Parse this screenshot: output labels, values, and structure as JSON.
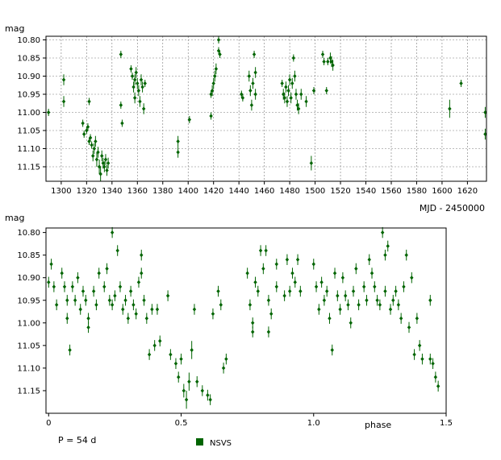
{
  "chart_data": [
    {
      "type": "scatter",
      "name": "time-series",
      "xlabel": "MJD - 2450000",
      "ylabel": "mag",
      "xlim": [
        1288,
        1635
      ],
      "ylim": [
        10.79,
        11.19
      ],
      "y_inverted": true,
      "grid": true,
      "xticks": [
        1300,
        1320,
        1340,
        1360,
        1380,
        1400,
        1420,
        1440,
        1460,
        1480,
        1500,
        1520,
        1540,
        1560,
        1580,
        1600,
        1620
      ],
      "yticks": [
        10.8,
        10.85,
        10.9,
        10.95,
        11.0,
        11.05,
        11.1,
        11.15
      ],
      "color": "#006400",
      "points": [
        [
          1290,
          11.0,
          0.01
        ],
        [
          1302,
          10.91,
          0.015
        ],
        [
          1302,
          10.97,
          0.015
        ],
        [
          1317,
          11.03,
          0.01
        ],
        [
          1318,
          11.06,
          0.01
        ],
        [
          1320,
          11.05,
          0.01
        ],
        [
          1321,
          11.04,
          0.01
        ],
        [
          1322,
          10.97,
          0.01
        ],
        [
          1322,
          11.08,
          0.01
        ],
        [
          1323,
          11.07,
          0.01
        ],
        [
          1324,
          11.09,
          0.01
        ],
        [
          1325,
          11.12,
          0.015
        ],
        [
          1326,
          11.1,
          0.015
        ],
        [
          1327,
          11.08,
          0.015
        ],
        [
          1328,
          11.13,
          0.02
        ],
        [
          1329,
          11.11,
          0.015
        ],
        [
          1330,
          11.15,
          0.02
        ],
        [
          1331,
          11.17,
          0.02
        ],
        [
          1332,
          11.12,
          0.015
        ],
        [
          1333,
          11.14,
          0.015
        ],
        [
          1334,
          11.15,
          0.015
        ],
        [
          1335,
          11.13,
          0.015
        ],
        [
          1336,
          11.16,
          0.015
        ],
        [
          1337,
          11.14,
          0.015
        ],
        [
          1347,
          10.84,
          0.01
        ],
        [
          1347,
          10.98,
          0.01
        ],
        [
          1348,
          11.03,
          0.01
        ],
        [
          1355,
          10.88,
          0.01
        ],
        [
          1356,
          10.9,
          0.01
        ],
        [
          1357,
          10.93,
          0.015
        ],
        [
          1358,
          10.91,
          0.015
        ],
        [
          1358,
          10.96,
          0.015
        ],
        [
          1359,
          10.89,
          0.015
        ],
        [
          1360,
          10.92,
          0.015
        ],
        [
          1361,
          10.94,
          0.015
        ],
        [
          1362,
          10.97,
          0.015
        ],
        [
          1363,
          10.91,
          0.015
        ],
        [
          1364,
          10.93,
          0.015
        ],
        [
          1365,
          10.99,
          0.015
        ],
        [
          1366,
          10.92,
          0.01
        ],
        [
          1392,
          11.11,
          0.015
        ],
        [
          1392,
          11.08,
          0.015
        ],
        [
          1401,
          11.02,
          0.01
        ],
        [
          1418,
          10.95,
          0.01
        ],
        [
          1418,
          11.01,
          0.01
        ],
        [
          1419,
          10.94,
          0.015
        ],
        [
          1420,
          10.92,
          0.015
        ],
        [
          1421,
          10.9,
          0.015
        ],
        [
          1422,
          10.88,
          0.015
        ],
        [
          1424,
          10.8,
          0.01
        ],
        [
          1424,
          10.83,
          0.01
        ],
        [
          1425,
          10.84,
          0.01
        ],
        [
          1442,
          10.95,
          0.01
        ],
        [
          1443,
          10.96,
          0.01
        ],
        [
          1448,
          10.9,
          0.015
        ],
        [
          1449,
          10.94,
          0.015
        ],
        [
          1450,
          10.98,
          0.015
        ],
        [
          1451,
          10.92,
          0.015
        ],
        [
          1452,
          10.84,
          0.01
        ],
        [
          1453,
          10.89,
          0.015
        ],
        [
          1453,
          10.95,
          0.015
        ],
        [
          1474,
          10.92,
          0.01
        ],
        [
          1475,
          10.95,
          0.015
        ],
        [
          1476,
          10.96,
          0.015
        ],
        [
          1477,
          10.93,
          0.015
        ],
        [
          1478,
          10.97,
          0.015
        ],
        [
          1479,
          10.94,
          0.015
        ],
        [
          1480,
          10.91,
          0.015
        ],
        [
          1481,
          10.96,
          0.015
        ],
        [
          1482,
          10.92,
          0.015
        ],
        [
          1483,
          10.85,
          0.01
        ],
        [
          1484,
          10.9,
          0.015
        ],
        [
          1485,
          10.95,
          0.015
        ],
        [
          1486,
          10.98,
          0.015
        ],
        [
          1487,
          10.99,
          0.015
        ],
        [
          1489,
          10.95,
          0.015
        ],
        [
          1493,
          10.97,
          0.015
        ],
        [
          1497,
          11.14,
          0.02
        ],
        [
          1499,
          10.94,
          0.01
        ],
        [
          1506,
          10.84,
          0.01
        ],
        [
          1507,
          10.86,
          0.01
        ],
        [
          1509,
          10.94,
          0.01
        ],
        [
          1510,
          10.86,
          0.01
        ],
        [
          1512,
          10.85,
          0.015
        ],
        [
          1513,
          10.86,
          0.015
        ],
        [
          1514,
          10.87,
          0.015
        ],
        [
          1606,
          10.99,
          0.025
        ],
        [
          1615,
          10.92,
          0.01
        ],
        [
          1634,
          11.0,
          0.015
        ],
        [
          1634,
          11.06,
          0.015
        ]
      ]
    },
    {
      "type": "scatter",
      "name": "phase",
      "xlabel": "phase",
      "ylabel": "mag",
      "xlim": [
        -0.01,
        1.5
      ],
      "ylim": [
        10.79,
        11.2
      ],
      "y_inverted": true,
      "grid": false,
      "xticks": [
        0,
        0.5,
        1.0,
        1.5
      ],
      "xtick_labels": [
        "0",
        "0.5",
        "1.0",
        "1.5"
      ],
      "yticks": [
        10.8,
        10.85,
        10.9,
        10.95,
        11.0,
        11.05,
        11.1,
        11.15
      ],
      "annotation": "P = 54 d",
      "legend": [
        {
          "label": "NSVS",
          "color": "#006400"
        }
      ],
      "color": "#006400",
      "points": [
        [
          0.0,
          10.91,
          0.012
        ],
        [
          0.01,
          10.87,
          0.012
        ],
        [
          0.02,
          10.92,
          0.012
        ],
        [
          0.03,
          10.96,
          0.012
        ],
        [
          0.05,
          10.89,
          0.012
        ],
        [
          0.06,
          10.92,
          0.012
        ],
        [
          0.07,
          10.95,
          0.012
        ],
        [
          0.07,
          10.99,
          0.012
        ],
        [
          0.08,
          11.06,
          0.012
        ],
        [
          0.09,
          10.92,
          0.012
        ],
        [
          0.1,
          10.95,
          0.012
        ],
        [
          0.11,
          10.9,
          0.012
        ],
        [
          0.12,
          10.97,
          0.012
        ],
        [
          0.13,
          10.93,
          0.012
        ],
        [
          0.14,
          10.95,
          0.012
        ],
        [
          0.15,
          10.99,
          0.012
        ],
        [
          0.15,
          11.01,
          0.012
        ],
        [
          0.17,
          10.93,
          0.012
        ],
        [
          0.18,
          10.96,
          0.012
        ],
        [
          0.19,
          10.89,
          0.012
        ],
        [
          0.21,
          10.92,
          0.012
        ],
        [
          0.22,
          10.88,
          0.012
        ],
        [
          0.23,
          10.95,
          0.012
        ],
        [
          0.24,
          10.96,
          0.012
        ],
        [
          0.24,
          10.8,
          0.012
        ],
        [
          0.25,
          10.94,
          0.012
        ],
        [
          0.26,
          10.84,
          0.012
        ],
        [
          0.27,
          10.92,
          0.012
        ],
        [
          0.28,
          10.97,
          0.012
        ],
        [
          0.29,
          10.95,
          0.012
        ],
        [
          0.3,
          10.99,
          0.012
        ],
        [
          0.31,
          10.93,
          0.012
        ],
        [
          0.32,
          10.96,
          0.012
        ],
        [
          0.33,
          10.98,
          0.012
        ],
        [
          0.34,
          10.91,
          0.012
        ],
        [
          0.35,
          10.85,
          0.012
        ],
        [
          0.35,
          10.89,
          0.012
        ],
        [
          0.36,
          10.95,
          0.012
        ],
        [
          0.37,
          10.99,
          0.012
        ],
        [
          0.38,
          11.07,
          0.012
        ],
        [
          0.39,
          10.97,
          0.012
        ],
        [
          0.4,
          11.05,
          0.012
        ],
        [
          0.41,
          10.97,
          0.012
        ],
        [
          0.42,
          11.04,
          0.012
        ],
        [
          0.45,
          10.94,
          0.012
        ],
        [
          0.46,
          11.07,
          0.012
        ],
        [
          0.48,
          11.09,
          0.012
        ],
        [
          0.49,
          11.12,
          0.012
        ],
        [
          0.5,
          11.08,
          0.012
        ],
        [
          0.51,
          11.15,
          0.015
        ],
        [
          0.52,
          11.17,
          0.02
        ],
        [
          0.53,
          11.13,
          0.02
        ],
        [
          0.54,
          11.06,
          0.02
        ],
        [
          0.55,
          10.97,
          0.012
        ],
        [
          0.56,
          11.13,
          0.012
        ],
        [
          0.58,
          11.15,
          0.012
        ],
        [
          0.6,
          11.16,
          0.012
        ],
        [
          0.61,
          11.17,
          0.012
        ],
        [
          0.62,
          10.98,
          0.012
        ],
        [
          0.64,
          10.93,
          0.012
        ],
        [
          0.65,
          10.96,
          0.012
        ],
        [
          0.66,
          11.1,
          0.012
        ],
        [
          0.67,
          11.08,
          0.012
        ],
        [
          0.75,
          10.89,
          0.012
        ],
        [
          0.76,
          10.96,
          0.012
        ],
        [
          0.77,
          11.0,
          0.012
        ],
        [
          0.77,
          11.02,
          0.012
        ],
        [
          0.78,
          10.91,
          0.012
        ],
        [
          0.79,
          10.93,
          0.012
        ],
        [
          0.8,
          10.84,
          0.012
        ],
        [
          0.81,
          10.88,
          0.012
        ],
        [
          0.82,
          10.84,
          0.012
        ],
        [
          0.83,
          10.95,
          0.012
        ],
        [
          0.83,
          11.02,
          0.012
        ],
        [
          0.84,
          10.98,
          0.012
        ],
        [
          0.86,
          10.92,
          0.012
        ],
        [
          0.86,
          10.87,
          0.012
        ],
        [
          0.89,
          10.94,
          0.012
        ],
        [
          0.9,
          10.86,
          0.012
        ],
        [
          0.91,
          10.93,
          0.012
        ],
        [
          0.92,
          10.89,
          0.012
        ],
        [
          0.93,
          10.91,
          0.012
        ],
        [
          0.94,
          10.86,
          0.012
        ],
        [
          0.95,
          10.93,
          0.012
        ],
        [
          1.0,
          10.87,
          0.012
        ],
        [
          1.01,
          10.92,
          0.012
        ],
        [
          1.02,
          10.97,
          0.012
        ],
        [
          1.03,
          10.91,
          0.012
        ],
        [
          1.04,
          10.95,
          0.012
        ],
        [
          1.05,
          10.93,
          0.012
        ],
        [
          1.06,
          10.99,
          0.012
        ],
        [
          1.07,
          11.06,
          0.012
        ],
        [
          1.08,
          10.89,
          0.012
        ],
        [
          1.09,
          10.94,
          0.012
        ],
        [
          1.1,
          10.97,
          0.012
        ],
        [
          1.11,
          10.9,
          0.012
        ],
        [
          1.12,
          10.94,
          0.012
        ],
        [
          1.13,
          10.96,
          0.012
        ],
        [
          1.14,
          11.0,
          0.012
        ],
        [
          1.15,
          10.93,
          0.012
        ],
        [
          1.16,
          10.88,
          0.012
        ],
        [
          1.17,
          10.96,
          0.012
        ],
        [
          1.19,
          10.92,
          0.012
        ],
        [
          1.2,
          10.95,
          0.012
        ],
        [
          1.21,
          10.86,
          0.012
        ],
        [
          1.22,
          10.89,
          0.012
        ],
        [
          1.23,
          10.92,
          0.012
        ],
        [
          1.24,
          10.95,
          0.012
        ],
        [
          1.25,
          10.96,
          0.012
        ],
        [
          1.26,
          10.8,
          0.012
        ],
        [
          1.27,
          10.93,
          0.012
        ],
        [
          1.27,
          10.85,
          0.012
        ],
        [
          1.28,
          10.83,
          0.012
        ],
        [
          1.29,
          10.97,
          0.012
        ],
        [
          1.3,
          10.95,
          0.012
        ],
        [
          1.31,
          10.93,
          0.012
        ],
        [
          1.32,
          10.96,
          0.012
        ],
        [
          1.33,
          10.99,
          0.012
        ],
        [
          1.34,
          10.92,
          0.012
        ],
        [
          1.35,
          10.85,
          0.012
        ],
        [
          1.36,
          11.01,
          0.012
        ],
        [
          1.37,
          10.9,
          0.012
        ],
        [
          1.38,
          11.07,
          0.012
        ],
        [
          1.39,
          10.99,
          0.012
        ],
        [
          1.4,
          11.05,
          0.012
        ],
        [
          1.41,
          11.08,
          0.012
        ],
        [
          1.44,
          10.95,
          0.012
        ],
        [
          1.44,
          11.08,
          0.012
        ],
        [
          1.45,
          11.09,
          0.012
        ],
        [
          1.46,
          11.12,
          0.012
        ],
        [
          1.47,
          11.14,
          0.012
        ]
      ]
    }
  ]
}
